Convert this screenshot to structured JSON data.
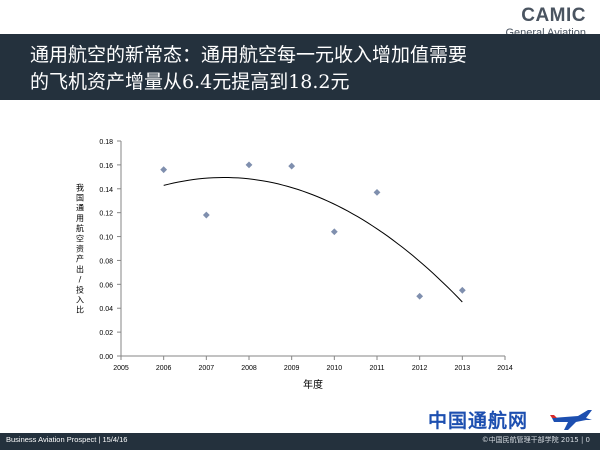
{
  "logo": {
    "main": "CAMIC",
    "sub": "General Aviation"
  },
  "title": {
    "line1": "通用航空的新常态：通用航空每一元收入增加值需要",
    "line2": "的飞机资产增量从6.4元提高到18.2元"
  },
  "footer": {
    "left": "Business Aviation Prospect | 15/4/16",
    "right": "©中国民航管理干部学院 2015 | 0"
  },
  "watermark": {
    "text": "中国通航网"
  },
  "colors": {
    "band": "#24313d",
    "marker": "#7f8fae",
    "trend": "#000000",
    "axis": "#868686",
    "watermark": "#1d4fb0"
  },
  "chart_data": {
    "type": "scatter",
    "title": "",
    "xlabel": "年度",
    "ylabel": "我国通用航空资产出/投入比",
    "xlim": [
      2005,
      2014
    ],
    "ylim": [
      0,
      0.18
    ],
    "x_ticks": [
      "2005",
      "2006",
      "2007",
      "2008",
      "2009",
      "2010",
      "2011",
      "2012",
      "2013",
      "2014"
    ],
    "y_ticks": [
      "0.00",
      "0.02",
      "0.04",
      "0.06",
      "0.08",
      "0.10",
      "0.12",
      "0.14",
      "0.16",
      "0.18"
    ],
    "grid": false,
    "series": [
      {
        "x": [
          2006,
          2007,
          2008,
          2009,
          2010,
          2011,
          2012,
          2013
        ],
        "y": [
          0.156,
          0.118,
          0.16,
          0.159,
          0.104,
          0.137,
          0.05,
          0.055
        ]
      }
    ],
    "trendline": {
      "type": "polynomial",
      "degree": 2,
      "x_range": [
        2006,
        2013
      ]
    }
  }
}
